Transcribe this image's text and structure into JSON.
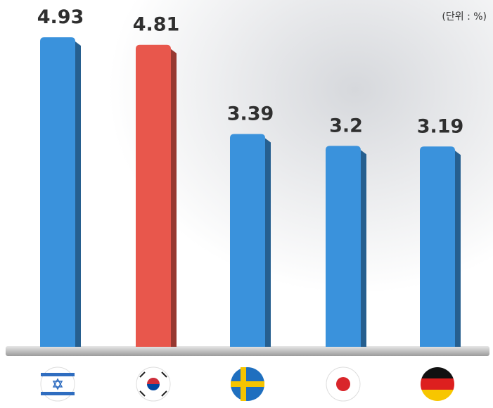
{
  "chart_data": {
    "type": "bar",
    "unit_note": "(단위 : %)",
    "categories": [
      null,
      null,
      null,
      null,
      null
    ],
    "values": [
      4.93,
      4.81,
      3.39,
      3.2,
      3.19
    ],
    "colors": [
      "#3a92dc",
      "#e8574c",
      "#3a92dc",
      "#3a92dc",
      "#3a92dc"
    ]
  }
}
